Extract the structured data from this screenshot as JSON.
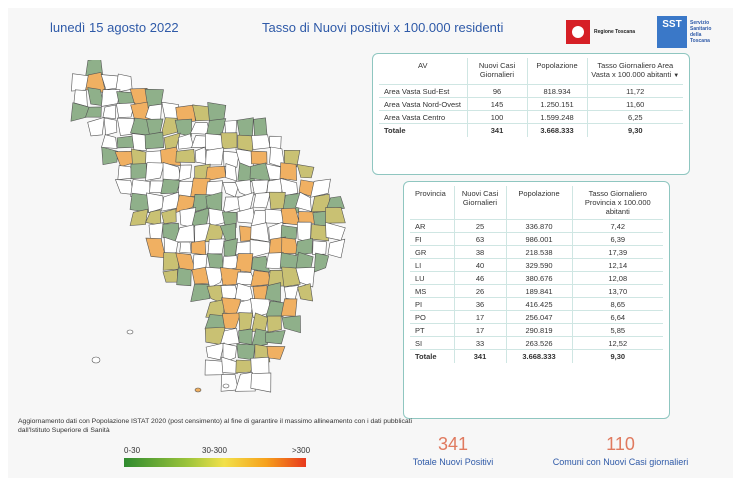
{
  "header": {
    "date": "lunedì 15 agosto 2022",
    "title": "Tasso di Nuovi positivi x 100.000 residenti"
  },
  "logos": {
    "regione": "Regione Toscana",
    "sst_mark": "SST",
    "sst_text": "Servizio Sanitario della Toscana"
  },
  "av_table": {
    "headers": [
      "AV",
      "Nuovi Casi Giornalieri",
      "Popolazione",
      "Tasso Giornaliero Area Vasta x 100.000 abitanti"
    ],
    "sort_indicator": "▼",
    "rows": [
      {
        "name": "Area Vasta Sud-Est",
        "cases": "96",
        "pop": "818.934",
        "rate": "11,72"
      },
      {
        "name": "Area Vasta Nord-Ovest",
        "cases": "145",
        "pop": "1.250.151",
        "rate": "11,60"
      },
      {
        "name": "Area Vasta Centro",
        "cases": "100",
        "pop": "1.599.248",
        "rate": "6,25"
      }
    ],
    "total": {
      "name": "Totale",
      "cases": "341",
      "pop": "3.668.333",
      "rate": "9,30"
    }
  },
  "prov_table": {
    "headers": [
      "Provincia",
      "Nuovi Casi Giornalieri",
      "Popolazione",
      "Tasso Giornaliero Provincia x 100.000 abitanti"
    ],
    "rows": [
      {
        "name": "AR",
        "cases": "25",
        "pop": "336.870",
        "rate": "7,42"
      },
      {
        "name": "FI",
        "cases": "63",
        "pop": "986.001",
        "rate": "6,39"
      },
      {
        "name": "GR",
        "cases": "38",
        "pop": "218.538",
        "rate": "17,39"
      },
      {
        "name": "LI",
        "cases": "40",
        "pop": "329.590",
        "rate": "12,14"
      },
      {
        "name": "LU",
        "cases": "46",
        "pop": "380.676",
        "rate": "12,08"
      },
      {
        "name": "MS",
        "cases": "26",
        "pop": "189.841",
        "rate": "13,70"
      },
      {
        "name": "PI",
        "cases": "36",
        "pop": "416.425",
        "rate": "8,65"
      },
      {
        "name": "PO",
        "cases": "17",
        "pop": "256.047",
        "rate": "6,64"
      },
      {
        "name": "PT",
        "cases": "17",
        "pop": "290.819",
        "rate": "5,85"
      },
      {
        "name": "SI",
        "cases": "33",
        "pop": "263.526",
        "rate": "12,52"
      }
    ],
    "total": {
      "name": "Totale",
      "cases": "341",
      "pop": "3.668.333",
      "rate": "9,30"
    }
  },
  "note": "Aggiornamento dati con Popolazione ISTAT 2020 (post censimento) al fine di garantire il massimo allineamento con i dati pubblicati dall'Istituto Superiore di Sanità",
  "legend": {
    "low": "0-30",
    "mid": "30-300",
    "high": ">300",
    "colors": [
      "#2f8b2f",
      "#9cc43b",
      "#f2e14a",
      "#f6a11c",
      "#e8391d"
    ]
  },
  "kpis": {
    "total_positives": {
      "value": "341",
      "label": "Totale Nuovi Positivi"
    },
    "comuni": {
      "value": "110",
      "label": "Comuni con Nuovi Casi giornalieri"
    }
  },
  "map_colors": {
    "white": "#ffffff",
    "green": "#8fb08a",
    "yellow": "#c9c173",
    "orange": "#f0b062",
    "border": "#555555"
  }
}
